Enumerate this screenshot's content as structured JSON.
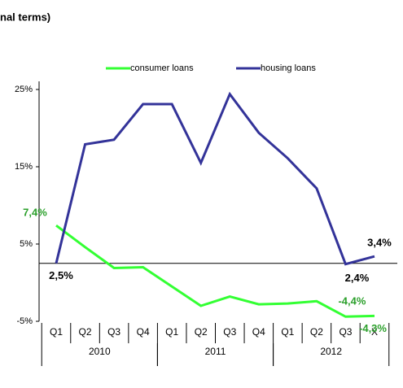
{
  "chart_data": {
    "type": "line",
    "title": "nal terms)",
    "categories": [
      "Q1",
      "Q2",
      "Q3",
      "Q4",
      "Q1",
      "Q2",
      "Q3",
      "Q4",
      "Q1",
      "Q2",
      "Q3",
      "X"
    ],
    "groups": [
      {
        "label": "2010",
        "span": 4
      },
      {
        "label": "2011",
        "span": 4
      },
      {
        "label": "2012",
        "span": 4
      }
    ],
    "series": [
      {
        "name": "consumer loans",
        "color": "#33ff33",
        "values": [
          7.4,
          4.6,
          1.9,
          2.0,
          -0.5,
          -3.0,
          -1.8,
          -2.8,
          -2.7,
          -2.4,
          -4.4,
          -4.3
        ],
        "value_labels": [
          "7,4%",
          null,
          null,
          null,
          null,
          null,
          null,
          null,
          null,
          null,
          "-4,4%",
          "-4,3%"
        ],
        "label_color": "#2ca02c"
      },
      {
        "name": "housing loans",
        "color": "#333399",
        "values": [
          2.5,
          17.9,
          18.5,
          23.1,
          23.1,
          15.5,
          24.4,
          19.4,
          16.1,
          12.2,
          2.4,
          3.4
        ],
        "value_labels": [
          "2,5%",
          null,
          null,
          null,
          null,
          null,
          null,
          null,
          null,
          null,
          "2,4%",
          "3,4%"
        ],
        "label_color": "#000000"
      }
    ],
    "ylim": [
      -5,
      25
    ],
    "yticks": [
      {
        "value": 25,
        "label": "25%"
      },
      {
        "value": 15,
        "label": "15%"
      },
      {
        "value": 5,
        "label": "5%"
      },
      {
        "value": -5,
        "label": "-5%"
      }
    ],
    "legend": "top"
  }
}
